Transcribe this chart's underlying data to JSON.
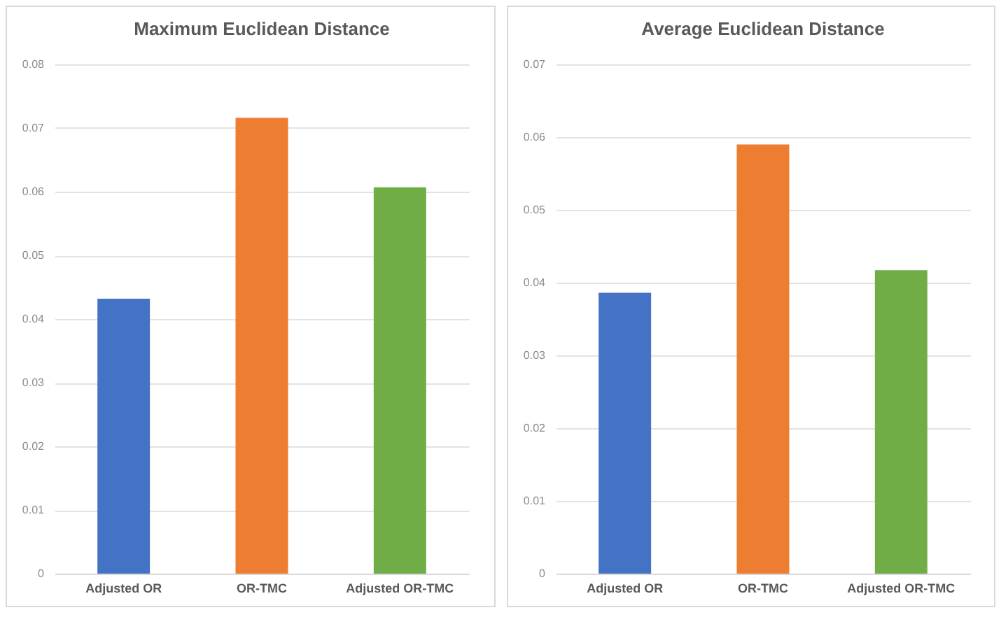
{
  "chart_data": [
    {
      "type": "bar",
      "title": "Maximum Euclidean Distance",
      "categories": [
        "Adjusted OR",
        "OR-TMC",
        "Adjusted OR-TMC"
      ],
      "values": [
        0.0432,
        0.0716,
        0.0607
      ],
      "colors": [
        "#4472c4",
        "#ed7d31",
        "#70ad47"
      ],
      "ylim": [
        0,
        0.08
      ],
      "yticks": [
        0,
        0.01,
        0.02,
        0.03,
        0.04,
        0.05,
        0.06,
        0.07,
        0.08
      ],
      "grid": "y"
    },
    {
      "type": "bar",
      "title": "Average Euclidean Distance",
      "categories": [
        "Adjusted OR",
        "OR-TMC",
        "Adjusted OR-TMC"
      ],
      "values": [
        0.0386,
        0.059,
        0.0417
      ],
      "colors": [
        "#4472c4",
        "#ed7d31",
        "#70ad47"
      ],
      "ylim": [
        0,
        0.07
      ],
      "yticks": [
        0,
        0.01,
        0.02,
        0.03,
        0.04,
        0.05,
        0.06,
        0.07
      ],
      "grid": "y"
    }
  ]
}
